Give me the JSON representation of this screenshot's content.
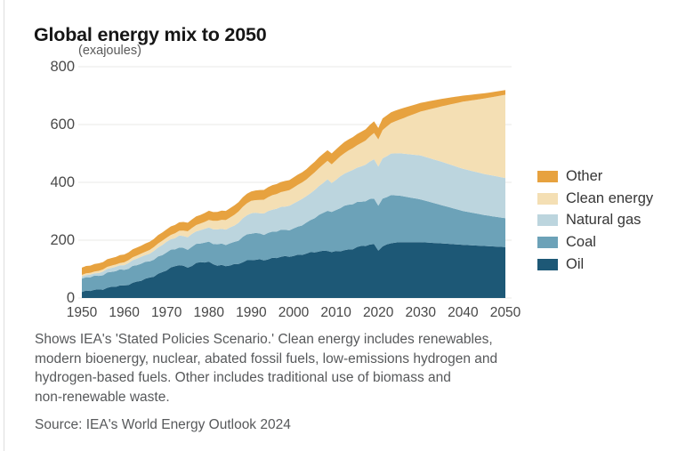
{
  "page": {
    "title": "Global energy mix to 2050",
    "unit_label": "(exajoules)",
    "note_lines": [
      "Shows IEA's 'Stated Policies Scenario.' Clean energy includes renewables,",
      "modern bioenergy, nuclear, abated fossil fuels, low-emissions hydrogen and",
      "hydrogen-based fuels. Other includes traditional use of biomass and",
      "non-renewable waste."
    ],
    "source": "Source: IEA's World Energy Outlook 2024"
  },
  "chart_data": {
    "type": "area",
    "stacked": true,
    "title": "Global energy mix to 2050",
    "ylabel": "exajoules",
    "xlabel": "",
    "xlim": [
      1950,
      2050
    ],
    "ylim": [
      0,
      800
    ],
    "yticks": [
      0,
      200,
      400,
      600,
      800
    ],
    "xticks": [
      1950,
      1960,
      1970,
      1980,
      1990,
      2000,
      2010,
      2020,
      2030,
      2040,
      2050
    ],
    "grid": "horizontal",
    "legend_position": "right",
    "legend_order_top_to_bottom": [
      "Other",
      "Clean energy",
      "Natural gas",
      "Coal",
      "Oil"
    ],
    "x": [
      1950,
      1955,
      1960,
      1965,
      1970,
      1973,
      1975,
      1978,
      1980,
      1982,
      1984,
      1986,
      1988,
      1990,
      1993,
      1996,
      2000,
      2003,
      2005,
      2008,
      2009,
      2011,
      2013,
      2015,
      2017,
      2019,
      2020,
      2021,
      2023,
      2025,
      2030,
      2035,
      2040,
      2045,
      2050
    ],
    "series": [
      {
        "name": "Oil",
        "color": "#1d5876",
        "values": [
          21,
          32,
          44,
          64,
          96,
          116,
          106,
          124,
          125,
          113,
          110,
          116,
          125,
          131,
          133,
          139,
          147,
          152,
          160,
          165,
          157,
          163,
          168,
          175,
          181,
          187,
          167,
          177,
          190,
          193,
          193,
          189,
          184,
          180,
          176
        ]
      },
      {
        "name": "Coal",
        "color": "#6ca2b8",
        "values": [
          46,
          50,
          56,
          58,
          60,
          61,
          63,
          66,
          70,
          72,
          74,
          78,
          86,
          92,
          90,
          91,
          94,
          105,
          120,
          138,
          136,
          150,
          157,
          153,
          155,
          160,
          155,
          163,
          166,
          161,
          148,
          132,
          117,
          107,
          100
        ]
      },
      {
        "name": "Natural gas",
        "color": "#bcd5de",
        "values": [
          7,
          11,
          17,
          25,
          36,
          41,
          42,
          46,
          50,
          50,
          53,
          58,
          63,
          70,
          73,
          78,
          86,
          92,
          97,
          107,
          101,
          110,
          114,
          119,
          126,
          136,
          133,
          140,
          143,
          147,
          152,
          150,
          146,
          142,
          139
        ]
      },
      {
        "name": "Clean energy",
        "color": "#f4dfb4",
        "values": [
          6,
          7,
          9,
          12,
          15,
          17,
          20,
          23,
          26,
          30,
          33,
          37,
          40,
          43,
          47,
          51,
          55,
          58,
          61,
          64,
          65,
          69,
          73,
          78,
          84,
          90,
          94,
          98,
          106,
          116,
          152,
          192,
          232,
          261,
          288
        ]
      },
      {
        "name": "Other",
        "color": "#e7a23f",
        "values": [
          25,
          26,
          27,
          28,
          29,
          29,
          30,
          30,
          31,
          31,
          32,
          32,
          33,
          33,
          34,
          35,
          35,
          36,
          37,
          37,
          38,
          38,
          38,
          39,
          39,
          40,
          40,
          40,
          38,
          36,
          30,
          26,
          21,
          18,
          16
        ]
      }
    ]
  }
}
